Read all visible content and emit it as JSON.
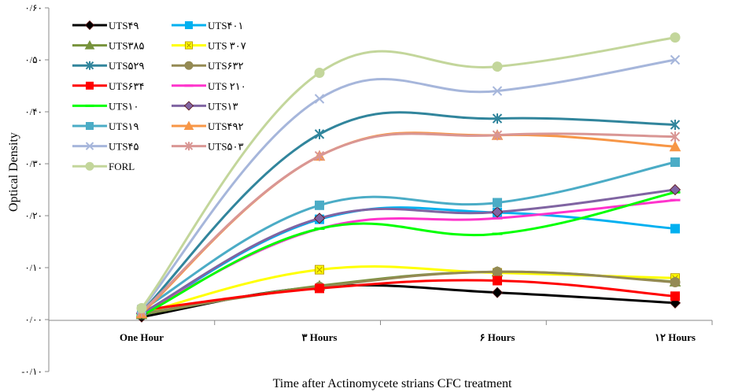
{
  "chart_data": {
    "type": "line",
    "categories": [
      "One Hour",
      "۳ Hours",
      "۶ Hours",
      "۱۲ Hours"
    ],
    "xlabel": "Time after Actinomycete strians CFC treatment",
    "ylabel": "Optical Density",
    "ylim": [
      -0.1,
      0.6
    ],
    "y_ticks": [
      -0.1,
      0.0,
      0.1,
      0.2,
      0.3,
      0.4,
      0.5,
      0.6
    ],
    "y_tick_labels": [
      "-۰/۱۰",
      "۰/۰۰",
      "۰/۱۰",
      "۰/۲۰",
      "۰/۳۰",
      "۰/۴۰",
      "۰/۵۰",
      "۰/۶۰"
    ],
    "grid": false,
    "legend_position": "top-left",
    "series": [
      {
        "name": "UTS۴۹",
        "values": [
          0.005,
          0.063,
          0.052,
          0.032
        ],
        "color": "#000000",
        "marker": "diamond"
      },
      {
        "name": "UTS۴۰۱",
        "values": [
          0.01,
          0.193,
          0.206,
          0.175
        ],
        "color": "#00B0F0",
        "marker": "square"
      },
      {
        "name": "UTS۳۸۵",
        "values": [
          0.01,
          0.065,
          0.092,
          0.073
        ],
        "color": "#77933C",
        "marker": "triangle"
      },
      {
        "name": "UTS ۳۰۷",
        "values": [
          0.012,
          0.096,
          0.09,
          0.08
        ],
        "color": "#FFFF00",
        "marker": "x-square"
      },
      {
        "name": "UTS۵۲۹",
        "values": [
          0.015,
          0.357,
          0.387,
          0.375
        ],
        "color": "#31859C",
        "marker": "star"
      },
      {
        "name": "UTS۶۳۲",
        "values": [
          0.012,
          0.063,
          0.092,
          0.072
        ],
        "color": "#948A54",
        "marker": "circle"
      },
      {
        "name": "UTS۶۳۴",
        "values": [
          0.018,
          0.06,
          0.075,
          0.045
        ],
        "color": "#FF0000",
        "marker": "square"
      },
      {
        "name": "UTS ۲۱۰",
        "values": [
          0.012,
          0.175,
          0.195,
          0.23
        ],
        "color": "#FF33CC",
        "marker": "dash"
      },
      {
        "name": "UTS۱۰",
        "values": [
          0.008,
          0.175,
          0.165,
          0.245
        ],
        "color": "#00FF00",
        "marker": "dash"
      },
      {
        "name": "UTS۱۳",
        "values": [
          0.012,
          0.195,
          0.207,
          0.25
        ],
        "color": "#8064A2",
        "marker": "diamond"
      },
      {
        "name": "UTS۱۹",
        "values": [
          0.018,
          0.22,
          0.225,
          0.303
        ],
        "color": "#4BACC6",
        "marker": "square"
      },
      {
        "name": "UTS۴۹۲",
        "values": [
          0.012,
          0.315,
          0.355,
          0.333
        ],
        "color": "#F79646",
        "marker": "triangle"
      },
      {
        "name": "UTS۴۵",
        "values": [
          0.02,
          0.425,
          0.44,
          0.5
        ],
        "color": "#A6B6DB",
        "marker": "x"
      },
      {
        "name": "UTS۵۰۳",
        "values": [
          0.015,
          0.315,
          0.355,
          0.352
        ],
        "color": "#D99694",
        "marker": "star"
      },
      {
        "name": "FORL",
        "values": [
          0.022,
          0.475,
          0.487,
          0.543
        ],
        "color": "#C3D69B",
        "marker": "circle"
      }
    ]
  }
}
